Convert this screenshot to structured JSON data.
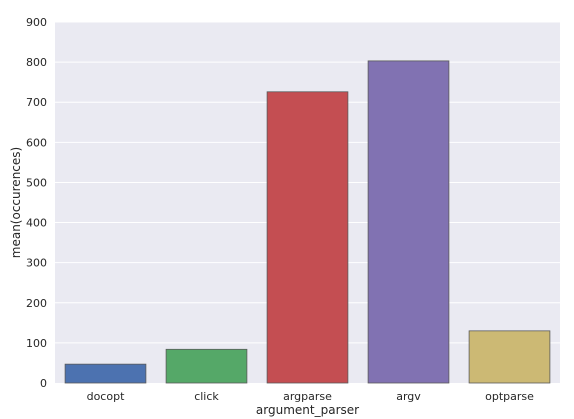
{
  "chart_data": {
    "type": "bar",
    "categories": [
      "docopt",
      "click",
      "argparse",
      "argv",
      "optparse"
    ],
    "values": [
      47,
      84,
      726,
      803,
      130
    ],
    "colors": [
      "#4c72b0",
      "#55a868",
      "#c44e52",
      "#8172b2",
      "#ccb974"
    ],
    "xlabel": "argument_parser",
    "ylabel": "mean(occurences)",
    "ylim": [
      0,
      900
    ],
    "yticks": [
      0,
      100,
      200,
      300,
      400,
      500,
      600,
      700,
      800,
      900
    ],
    "grid": true,
    "background": "#eaeaf2"
  }
}
